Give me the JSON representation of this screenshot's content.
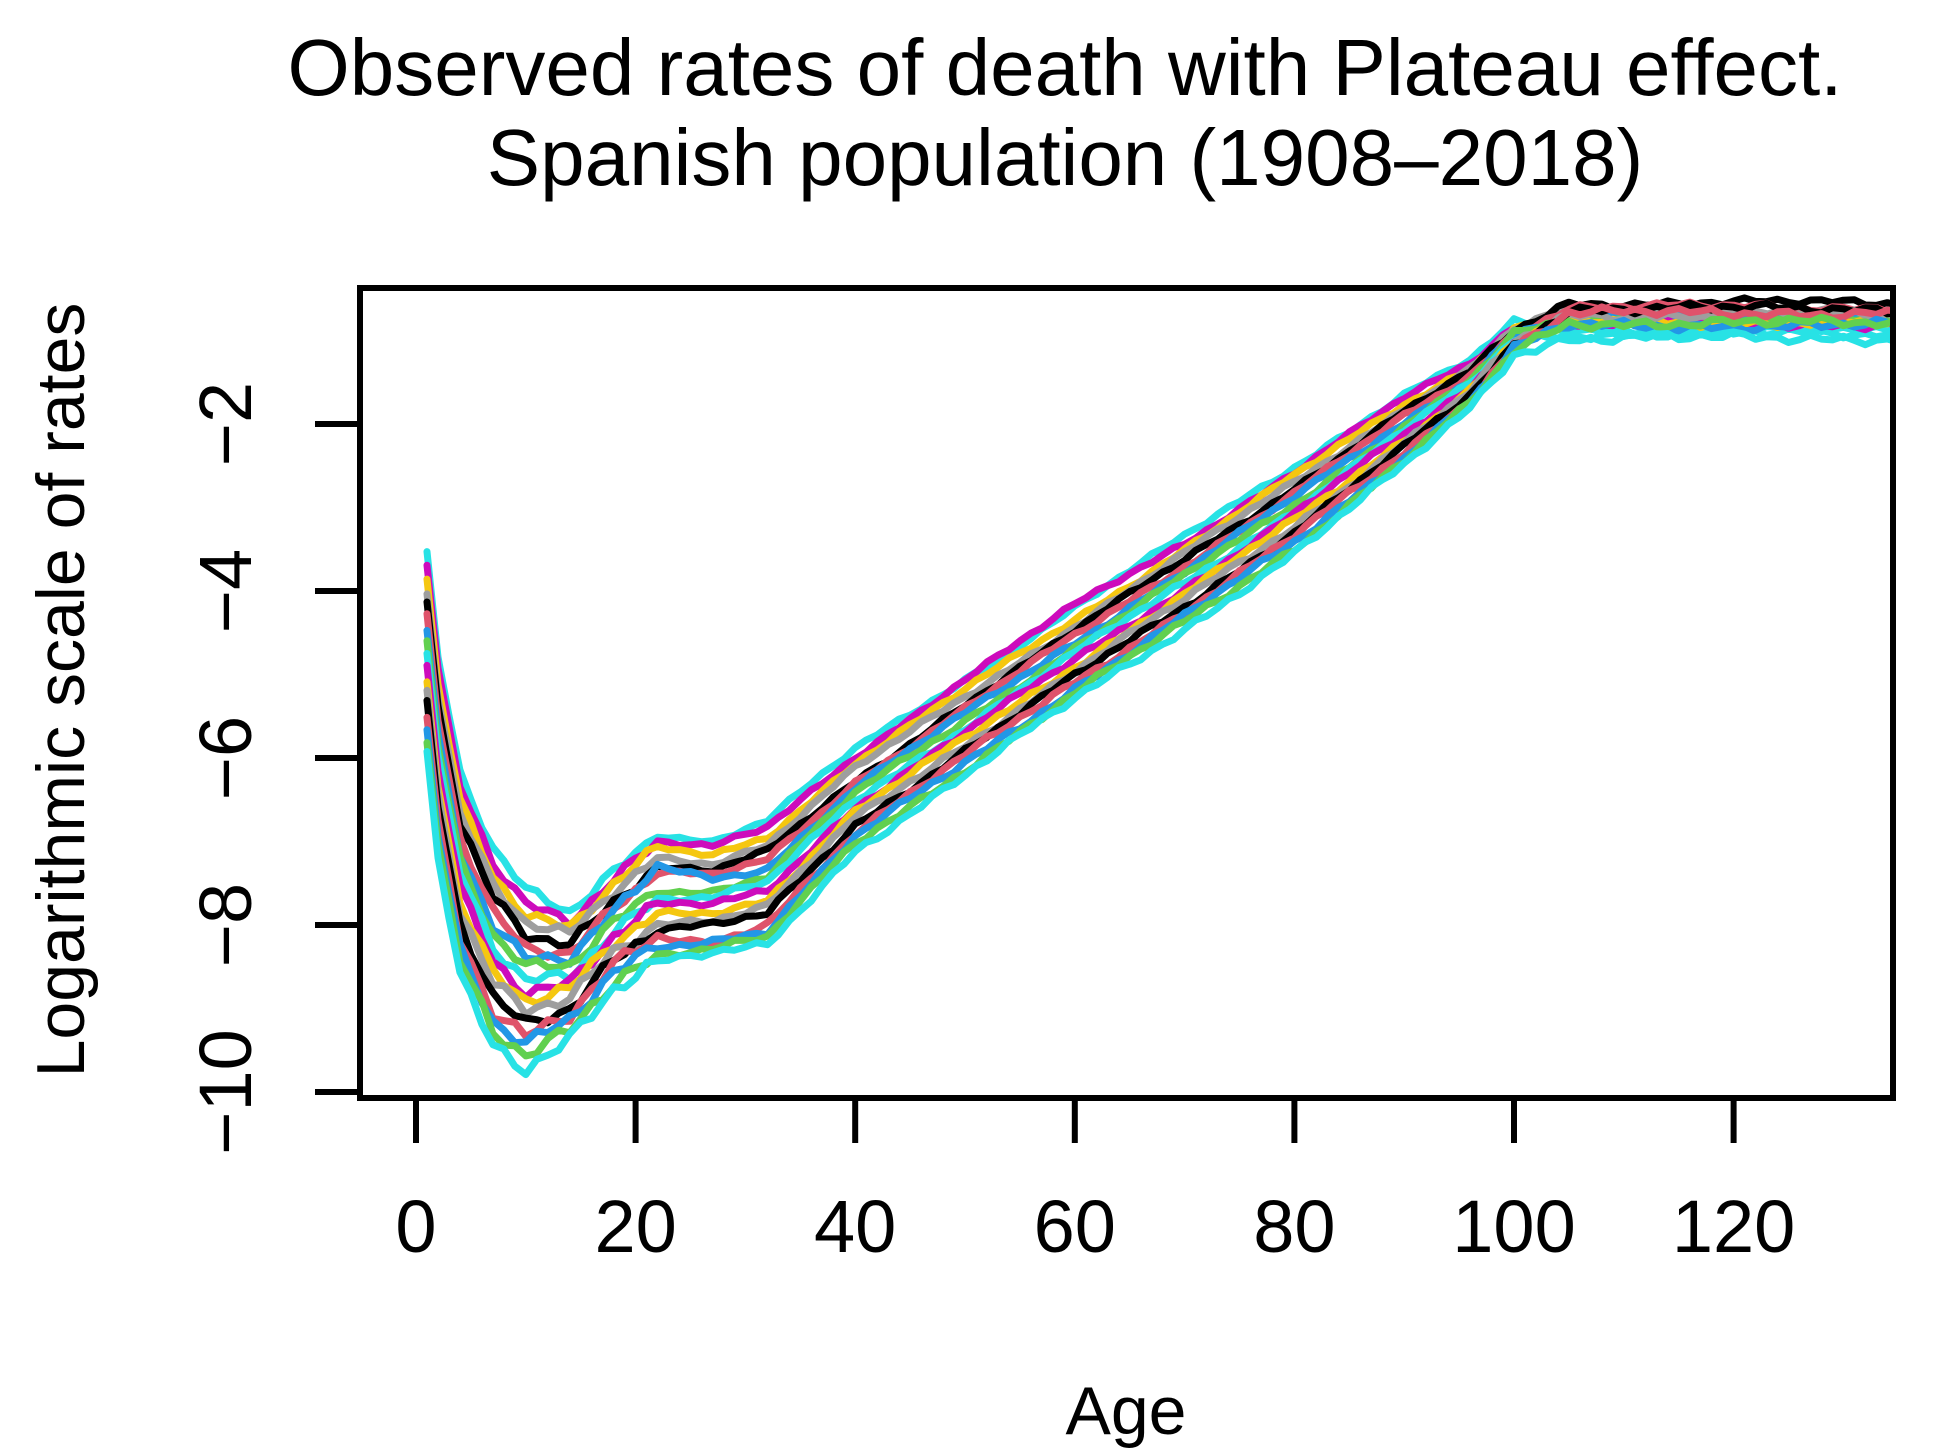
{
  "figure": {
    "title_line1": "Observed rates of death with Plateau effect.",
    "title_line2": "Spanish population (1908–2018)",
    "x_axis": {
      "label": "Age",
      "tick_labels": [
        "0",
        "20",
        "40",
        "60",
        "80",
        "100",
        "120"
      ],
      "tick_values": [
        0,
        20,
        40,
        60,
        80,
        100,
        120
      ]
    },
    "y_axis": {
      "label": "Logarithmic scale of rates",
      "tick_labels": [
        "−2",
        "−4",
        "−6",
        "−8",
        "−10"
      ],
      "tick_values": [
        -2,
        -4,
        -6,
        -8,
        -10
      ]
    }
  },
  "chart_data": {
    "type": "line",
    "title": "Observed rates of death with Plateau effect. Spanish population (1908–2018)",
    "xlabel": "Age",
    "ylabel": "Logarithmic scale of rates",
    "xlim": [
      -5,
      135
    ],
    "ylim": [
      -10.1,
      -0.37
    ],
    "grid": false,
    "legend": "none",
    "description": "Log death rates by age for Spanish population years 1908-2018; one jagged line per year, R default palette recycled; infant spike near age 1, childhood minimum near ages 5-14, accident shoulder near age 20, Gompertz rise to ~100, mortality plateau from ~100 to 135.",
    "anchor_ages": [
      1,
      2,
      4,
      7,
      10,
      14,
      18,
      22,
      27,
      32,
      40,
      50,
      60,
      70,
      80,
      90,
      96,
      100,
      105,
      115,
      125,
      135
    ],
    "series": [
      {
        "color": "#28E2E5",
        "values": [
          -3.55,
          -4.8,
          -6.2,
          -7.1,
          -7.6,
          -7.85,
          -7.35,
          -6.9,
          -7.0,
          -6.75,
          -5.9,
          -5.05,
          -4.2,
          -3.35,
          -2.5,
          -1.65,
          -1.25,
          -0.8,
          -0.88,
          -0.88,
          -0.88,
          -0.88
        ]
      },
      {
        "color": "#CD0BBC",
        "values": [
          -3.7,
          -4.95,
          -6.35,
          -7.25,
          -7.73,
          -7.94,
          -7.44,
          -7.0,
          -7.08,
          -6.84,
          -5.98,
          -5.05,
          -4.18,
          -3.42,
          -2.57,
          -1.7,
          -1.28,
          -0.82,
          -0.75,
          -0.75,
          -0.75,
          -0.75
        ]
      },
      {
        "color": "#F5C710",
        "values": [
          -3.85,
          -5.1,
          -6.5,
          -7.39,
          -7.86,
          -8.04,
          -7.53,
          -7.09,
          -7.17,
          -6.94,
          -6.05,
          -5.19,
          -4.34,
          -3.49,
          -2.63,
          -1.76,
          -1.32,
          -0.84,
          -0.72,
          -0.72,
          -0.72,
          -0.72
        ]
      },
      {
        "color": "#9E9E9E",
        "values": [
          -4.0,
          -5.25,
          -6.65,
          -7.54,
          -7.99,
          -8.13,
          -7.61,
          -7.19,
          -7.25,
          -7.03,
          -6.13,
          -5.27,
          -4.41,
          -3.56,
          -2.7,
          -1.81,
          -1.35,
          -0.87,
          -0.66,
          -0.66,
          -0.66,
          -0.66
        ]
      },
      {
        "color": "#000000",
        "values": [
          -4.15,
          -5.4,
          -6.8,
          -7.69,
          -8.13,
          -8.23,
          -7.7,
          -7.29,
          -7.34,
          -7.13,
          -6.3,
          -5.34,
          -4.48,
          -3.63,
          -2.76,
          -1.86,
          -1.39,
          -0.89,
          -0.55,
          -0.55,
          -0.55,
          -0.55
        ]
      },
      {
        "color": "#DF536B",
        "values": [
          -4.3,
          -5.55,
          -6.95,
          -7.83,
          -8.26,
          -8.32,
          -7.79,
          -7.38,
          -7.42,
          -7.22,
          -6.28,
          -5.41,
          -4.54,
          -3.69,
          -2.83,
          -1.92,
          -1.42,
          -0.91,
          -0.6,
          -0.6,
          -0.6,
          -0.6
        ]
      },
      {
        "color": "#2297E6",
        "values": [
          -4.45,
          -5.7,
          -7.1,
          -7.98,
          -8.39,
          -8.41,
          -7.88,
          -7.3,
          -7.45,
          -7.31,
          -6.35,
          -5.48,
          -4.61,
          -3.76,
          -2.89,
          -1.97,
          -1.46,
          -0.93,
          -0.74,
          -0.74,
          -0.74,
          -0.74
        ]
      },
      {
        "color": "#61D04F",
        "values": [
          -4.6,
          -5.85,
          -7.25,
          -8.13,
          -8.52,
          -8.51,
          -7.96,
          -7.58,
          -7.59,
          -7.41,
          -6.43,
          -5.55,
          -4.68,
          -3.83,
          -2.96,
          -2.02,
          -1.49,
          -0.95,
          -0.76,
          -0.76,
          -0.76,
          -0.76
        ]
      },
      {
        "color": "#28E2E5",
        "values": [
          -4.75,
          -6.0,
          -7.4,
          -8.28,
          -8.65,
          -8.6,
          -8.05,
          -7.68,
          -7.68,
          -7.5,
          -6.5,
          -5.63,
          -4.75,
          -3.9,
          -3.03,
          -2.08,
          -1.53,
          -0.98,
          -0.92,
          -0.92,
          -0.92,
          -0.92
        ]
      },
      {
        "color": "#CD0BBC",
        "values": [
          -4.9,
          -6.15,
          -7.55,
          -8.42,
          -8.78,
          -8.69,
          -8.14,
          -7.77,
          -7.76,
          -7.59,
          -6.58,
          -5.7,
          -4.82,
          -3.97,
          -3.09,
          -2.13,
          -1.56,
          -1.0,
          -0.8,
          -0.8,
          -0.8,
          -0.8
        ]
      },
      {
        "color": "#F5C710",
        "values": [
          -5.05,
          -6.3,
          -7.7,
          -8.57,
          -8.91,
          -8.79,
          -8.23,
          -7.87,
          -7.84,
          -7.69,
          -6.65,
          -5.77,
          -4.89,
          -4.04,
          -3.16,
          -2.18,
          -1.59,
          -1.02,
          -0.78,
          -0.78,
          -0.78,
          -0.78
        ]
      },
      {
        "color": "#9E9E9E",
        "values": [
          -5.2,
          -6.45,
          -7.85,
          -8.72,
          -9.04,
          -8.88,
          -8.31,
          -7.97,
          -7.93,
          -7.78,
          -6.73,
          -5.84,
          -4.96,
          -4.11,
          -3.22,
          -2.23,
          -1.63,
          -1.04,
          -0.7,
          -0.7,
          -0.7,
          -0.7
        ]
      },
      {
        "color": "#000000",
        "values": [
          -5.35,
          -6.6,
          -8.0,
          -8.86,
          -9.18,
          -8.98,
          -8.4,
          -8.06,
          -8.01,
          -7.88,
          -6.8,
          -5.91,
          -5.03,
          -4.18,
          -3.29,
          -2.29,
          -1.66,
          -1.06,
          -0.62,
          -0.62,
          -0.62,
          -0.62
        ]
      },
      {
        "color": "#DF536B",
        "values": [
          -5.5,
          -6.75,
          -8.15,
          -9.01,
          -9.31,
          -9.07,
          -8.49,
          -8.16,
          -8.25,
          -7.97,
          -6.88,
          -5.98,
          -5.09,
          -4.24,
          -3.35,
          -2.34,
          -1.7,
          -1.08,
          -0.67,
          -0.67,
          -0.67,
          -0.67
        ]
      },
      {
        "color": "#2297E6",
        "values": [
          -5.65,
          -6.9,
          -8.3,
          -9.16,
          -9.44,
          -9.16,
          -8.58,
          -8.26,
          -8.18,
          -8.06,
          -6.95,
          -6.06,
          -5.16,
          -4.31,
          -3.42,
          -2.39,
          -1.73,
          -1.11,
          -0.82,
          -0.82,
          -0.82,
          -0.82
        ]
      },
      {
        "color": "#61D04F",
        "values": [
          -5.8,
          -7.05,
          -8.45,
          -9.3,
          -9.57,
          -9.26,
          -8.66,
          -8.35,
          -8.27,
          -8.16,
          -7.03,
          -6.13,
          -5.23,
          -4.38,
          -3.48,
          -2.44,
          -1.77,
          -1.13,
          -0.79,
          -0.79,
          -0.79,
          -0.79
        ]
      },
      {
        "color": "#28E2E5",
        "values": [
          -5.95,
          -7.2,
          -8.6,
          -9.45,
          -9.7,
          -9.35,
          -8.75,
          -8.45,
          -8.35,
          -8.25,
          -7.1,
          -6.2,
          -5.3,
          -4.45,
          -3.55,
          -2.5,
          -1.8,
          -1.15,
          -0.97,
          -0.97,
          -0.97,
          -0.97
        ]
      }
    ]
  },
  "style": {
    "background": "#FFFFFF",
    "axis_color": "#000000",
    "axis_stroke": 6,
    "tick_length": 45,
    "series_stroke": 7,
    "noise": {
      "infant": 0.04,
      "child": 0.13,
      "adult": 0.055,
      "plateau": 0.08,
      "broad": 0.05
    }
  }
}
